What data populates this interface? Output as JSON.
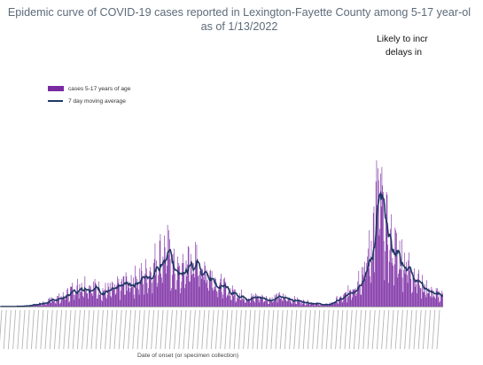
{
  "chart_data": {
    "type": "bar",
    "title_line1": "Epidemic curve of COVID-19 cases reported in Lexington-Fayette County among 5-17 year-ol",
    "title_line2": "as of 1/13/2022",
    "note_line1": "Likely to incr",
    "note_line2": "delays in",
    "xlabel": "Date of onset (or specimen collection)",
    "ylabel": "",
    "ylim": [
      0,
      110
    ],
    "grid": false,
    "legend_position": "top-left",
    "series": [
      {
        "name": "cases 5-17 years of age",
        "kind": "bar",
        "color": "#7a2aa3"
      },
      {
        "name": "7 day moving average",
        "kind": "line",
        "color": "#1f3864"
      }
    ],
    "x_start_index": 0,
    "x_count": 670,
    "tick_labels_note": "x-axis tick labels are illegible in the screenshot",
    "profile_points_day_value": [
      [
        0,
        0
      ],
      [
        40,
        0.5
      ],
      [
        60,
        2
      ],
      [
        80,
        5
      ],
      [
        95,
        7
      ],
      [
        110,
        12
      ],
      [
        125,
        16
      ],
      [
        140,
        14
      ],
      [
        155,
        11
      ],
      [
        170,
        12
      ],
      [
        185,
        16
      ],
      [
        200,
        18
      ],
      [
        215,
        22
      ],
      [
        228,
        26
      ],
      [
        240,
        36
      ],
      [
        252,
        40
      ],
      [
        262,
        28
      ],
      [
        272,
        22
      ],
      [
        285,
        32
      ],
      [
        300,
        31
      ],
      [
        315,
        24
      ],
      [
        330,
        17
      ],
      [
        345,
        11
      ],
      [
        360,
        9
      ],
      [
        375,
        6
      ],
      [
        390,
        7
      ],
      [
        405,
        5
      ],
      [
        420,
        7
      ],
      [
        435,
        6
      ],
      [
        450,
        4
      ],
      [
        465,
        3
      ],
      [
        480,
        2
      ],
      [
        495,
        1
      ],
      [
        505,
        4
      ],
      [
        518,
        6
      ],
      [
        530,
        12
      ],
      [
        542,
        20
      ],
      [
        552,
        28
      ],
      [
        560,
        40
      ],
      [
        566,
        62
      ],
      [
        571,
        80
      ],
      [
        576,
        72
      ],
      [
        582,
        56
      ],
      [
        590,
        45
      ],
      [
        600,
        38
      ],
      [
        610,
        33
      ],
      [
        620,
        28
      ],
      [
        630,
        20
      ],
      [
        642,
        14
      ],
      [
        655,
        9
      ],
      [
        670,
        8
      ]
    ]
  }
}
